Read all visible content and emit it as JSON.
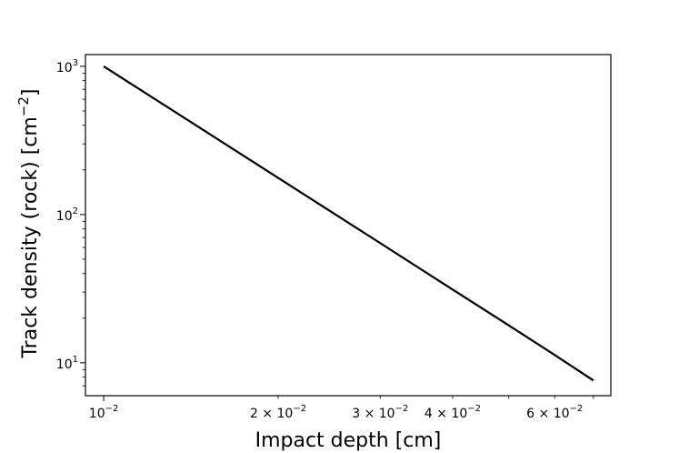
{
  "chart_data": {
    "type": "line",
    "title": "",
    "xlabel": "Impact depth [cm]",
    "ylabel": "Track density (rock) [cm⁻²]",
    "ylabel_parts": {
      "before": "Track density (rock) [cm",
      "superscript": "−2",
      "after": "]"
    },
    "x_scale": "log",
    "y_scale": "log",
    "xlim": [
      0.0093,
      0.075
    ],
    "ylim": [
      6.0,
      1200.0
    ],
    "grid": false,
    "legend": "none",
    "colors": {
      "line": "#000000",
      "axes": "#000000",
      "background": "#ffffff"
    },
    "x_ticks": [
      {
        "value": 0.01,
        "base": "10",
        "sup": "−2"
      },
      {
        "value": 0.02,
        "base": "2 × 10",
        "sup": "−2"
      },
      {
        "value": 0.03,
        "base": "3 × 10",
        "sup": "−2"
      },
      {
        "value": 0.04,
        "base": "4 × 10",
        "sup": "−2"
      },
      {
        "value": 0.06,
        "base": "6 × 10",
        "sup": "−2"
      }
    ],
    "x_minor_ticks": [
      0.05,
      0.07
    ],
    "y_ticks": [
      {
        "value": 10,
        "base": "10",
        "sup": "1"
      },
      {
        "value": 100,
        "base": "10",
        "sup": "2"
      },
      {
        "value": 1000,
        "base": "10",
        "sup": "3"
      }
    ],
    "y_minor_ticks": [
      7,
      8,
      9,
      20,
      30,
      40,
      50,
      60,
      70,
      80,
      90,
      200,
      300,
      400,
      500,
      600,
      700,
      800,
      900
    ],
    "series": [
      {
        "x": [
          0.01,
          0.02,
          0.03,
          0.04,
          0.05,
          0.06,
          0.07
        ],
        "y": [
          1000,
          176.8,
          64.2,
          31.2,
          17.9,
          11.3,
          7.6
        ]
      }
    ]
  }
}
